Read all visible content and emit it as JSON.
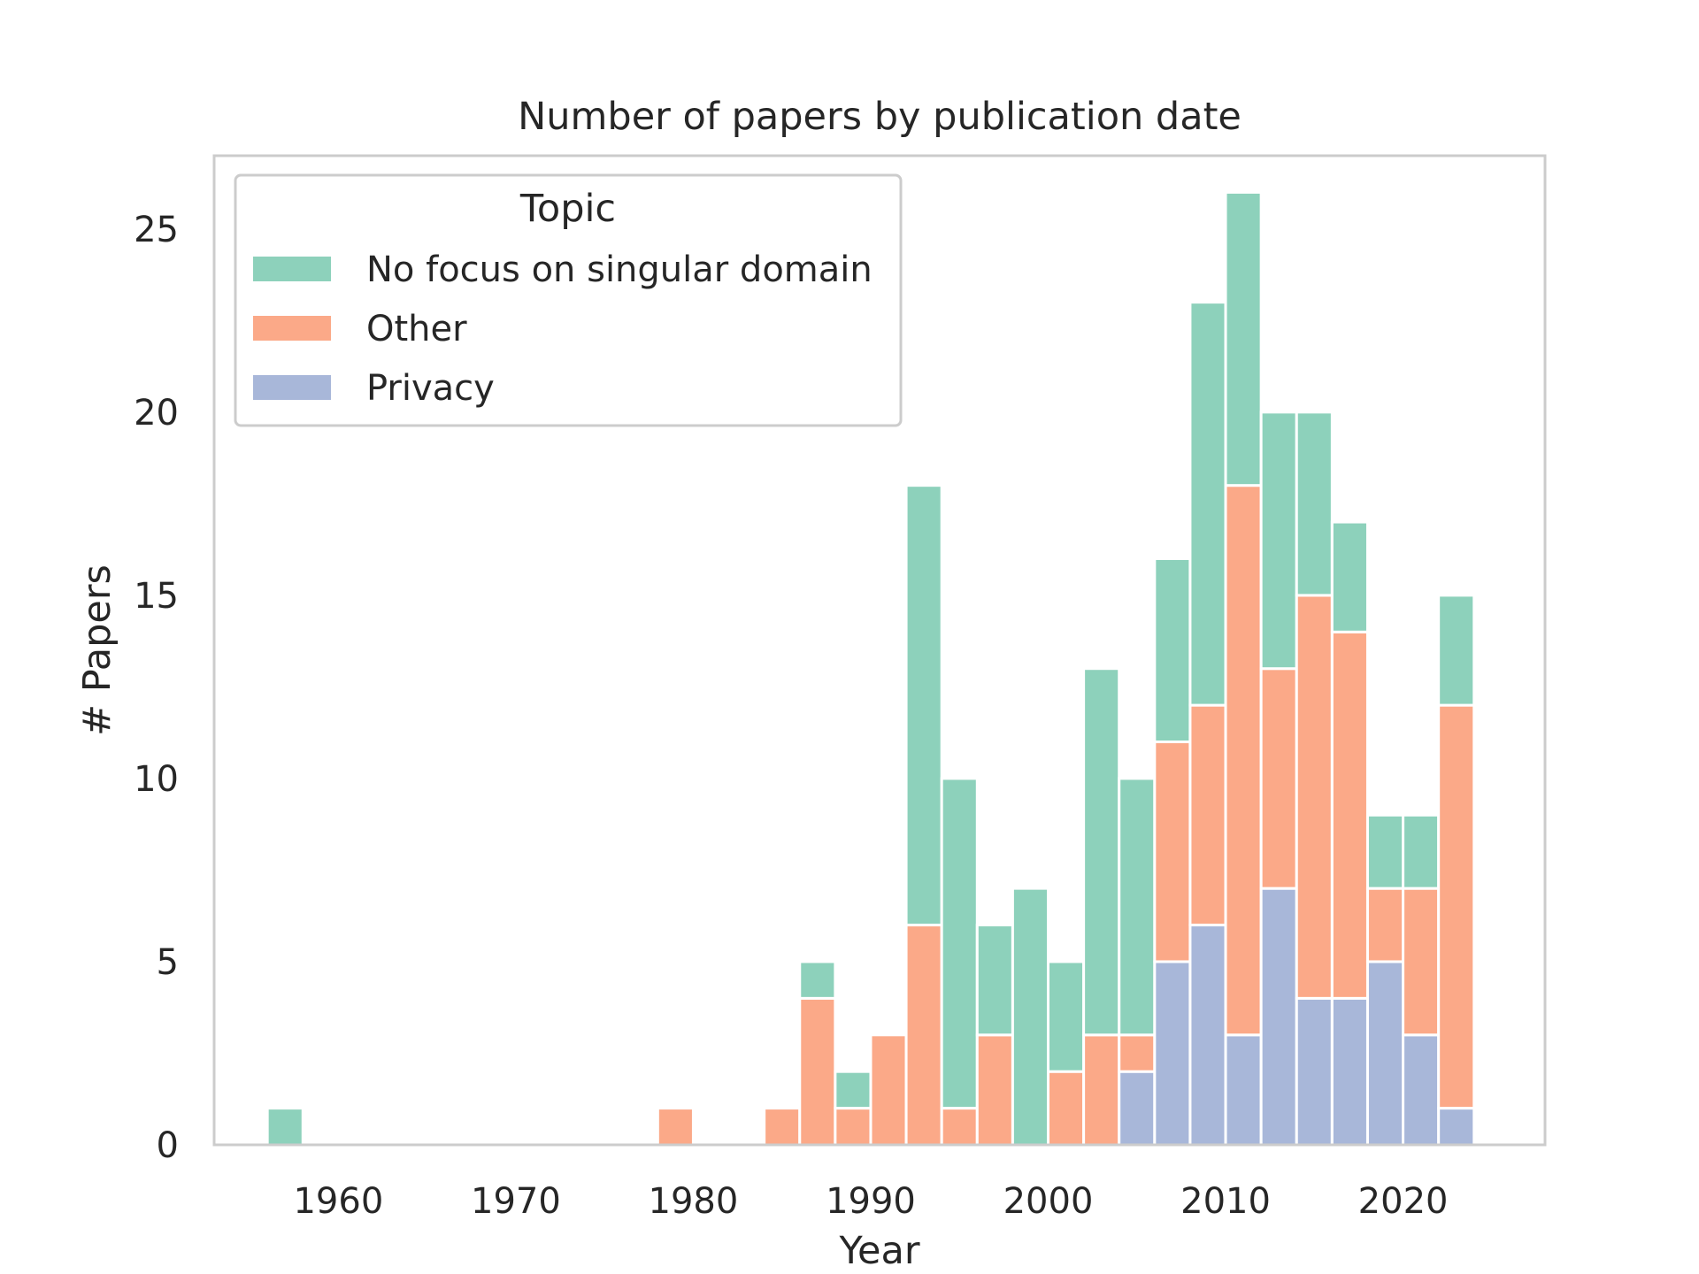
{
  "chart_data": {
    "type": "bar",
    "stacked": true,
    "title": "Number of papers by publication date",
    "xlabel": "Year",
    "ylabel": "# Papers",
    "xlim": [
      1953,
      2028
    ],
    "ylim": [
      0,
      27
    ],
    "xticks": [
      1960,
      1970,
      1980,
      1990,
      2000,
      2010,
      2020
    ],
    "yticks": [
      0,
      5,
      10,
      15,
      20,
      25
    ],
    "grid": false,
    "legend": {
      "title": "Topic",
      "placement": "top-left",
      "entries": [
        "No focus on singular domain",
        "Other",
        "Privacy"
      ]
    },
    "bin_width": 2,
    "bins": [
      1957,
      1959,
      1961,
      1963,
      1965,
      1967,
      1969,
      1971,
      1973,
      1975,
      1977,
      1979,
      1981,
      1983,
      1985,
      1987,
      1989,
      1991,
      1993,
      1995,
      1997,
      1999,
      2001,
      2003,
      2005,
      2007,
      2009,
      2011,
      2013,
      2015,
      2017,
      2019,
      2021,
      2023
    ],
    "series": [
      {
        "name": "Privacy",
        "color": "#a8b7d9",
        "values": [
          0,
          0,
          0,
          0,
          0,
          0,
          0,
          0,
          0,
          0,
          0,
          0,
          0,
          0,
          0,
          0,
          0,
          0,
          0,
          0,
          0,
          0,
          0,
          0,
          2,
          5,
          6,
          3,
          7,
          4,
          4,
          5,
          3,
          1
        ]
      },
      {
        "name": "Other",
        "color": "#fba988",
        "values": [
          0,
          0,
          0,
          0,
          0,
          0,
          0,
          0,
          0,
          0,
          0,
          1,
          0,
          0,
          1,
          4,
          1,
          3,
          6,
          1,
          3,
          0,
          2,
          3,
          1,
          6,
          6,
          15,
          6,
          11,
          10,
          2,
          4,
          11
        ]
      },
      {
        "name": "No focus on singular domain",
        "color": "#8dd1bb",
        "values": [
          1,
          0,
          0,
          0,
          0,
          0,
          0,
          0,
          0,
          0,
          0,
          0,
          0,
          0,
          0,
          1,
          1,
          0,
          12,
          9,
          3,
          7,
          3,
          10,
          7,
          5,
          11,
          8,
          7,
          5,
          3,
          2,
          2,
          3
        ]
      }
    ]
  }
}
